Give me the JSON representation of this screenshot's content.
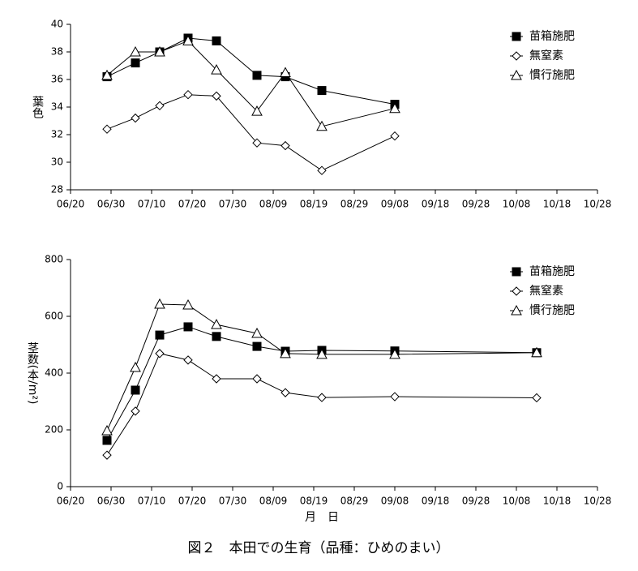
{
  "caption": "図２　本田での生育（品種：ひめのまい）",
  "chart_data": [
    {
      "type": "line",
      "ylabel": "葉色",
      "x": [
        "06/29",
        "07/06",
        "07/12",
        "07/19",
        "07/26",
        "08/05",
        "08/12",
        "08/21",
        "09/08"
      ],
      "xlim": [
        "06/20",
        "10/28"
      ],
      "xticks": [
        "06/20",
        "06/30",
        "07/10",
        "07/20",
        "07/30",
        "08/09",
        "08/19",
        "08/29",
        "09/08",
        "09/18",
        "09/28",
        "10/08",
        "10/18",
        "10/28"
      ],
      "ylim": [
        28,
        40
      ],
      "yticks": [
        28,
        30,
        32,
        34,
        36,
        38,
        40
      ],
      "legend": "upper right",
      "series": [
        {
          "name": "苗箱施肥",
          "color": "#000000",
          "marker": "square",
          "values": [
            36.2,
            37.2,
            38.0,
            39.0,
            38.8,
            36.3,
            36.2,
            35.2,
            34.2
          ]
        },
        {
          "name": "無窒素",
          "color": "#000000",
          "marker": "diamond",
          "values": [
            32.4,
            33.2,
            34.1,
            34.9,
            34.8,
            31.4,
            31.2,
            29.4,
            31.9
          ]
        },
        {
          "name": "慣行施肥",
          "color": "#000000",
          "marker": "triangle",
          "values": [
            36.3,
            38.0,
            38.0,
            38.8,
            36.7,
            33.7,
            36.5,
            32.6,
            33.9
          ]
        }
      ]
    },
    {
      "type": "line",
      "ylabel": "茎数(本/m²)",
      "xlabel": "月　日",
      "x": [
        "06/29",
        "07/06",
        "07/12",
        "07/19",
        "07/26",
        "08/05",
        "08/12",
        "08/21",
        "09/08",
        "10/13"
      ],
      "xlim": [
        "06/20",
        "10/28"
      ],
      "xticks": [
        "06/20",
        "06/30",
        "07/10",
        "07/20",
        "07/30",
        "08/09",
        "08/19",
        "08/29",
        "09/08",
        "09/18",
        "09/28",
        "10/08",
        "10/18",
        "10/28"
      ],
      "ylim": [
        0,
        800
      ],
      "yticks": [
        0,
        200,
        400,
        600,
        800
      ],
      "legend": "upper right",
      "series": [
        {
          "name": "苗箱施肥",
          "color": "#000000",
          "marker": "square",
          "values": [
            163,
            340,
            534,
            563,
            529,
            494,
            477,
            480,
            478,
            472
          ]
        },
        {
          "name": "無窒素",
          "color": "#000000",
          "marker": "diamond",
          "values": [
            111,
            266,
            469,
            446,
            380,
            380,
            331,
            314,
            317,
            313
          ]
        },
        {
          "name": "慣行施肥",
          "color": "#000000",
          "marker": "triangle",
          "values": [
            197,
            420,
            643,
            640,
            571,
            540,
            469,
            466,
            466,
            472
          ]
        }
      ]
    }
  ]
}
